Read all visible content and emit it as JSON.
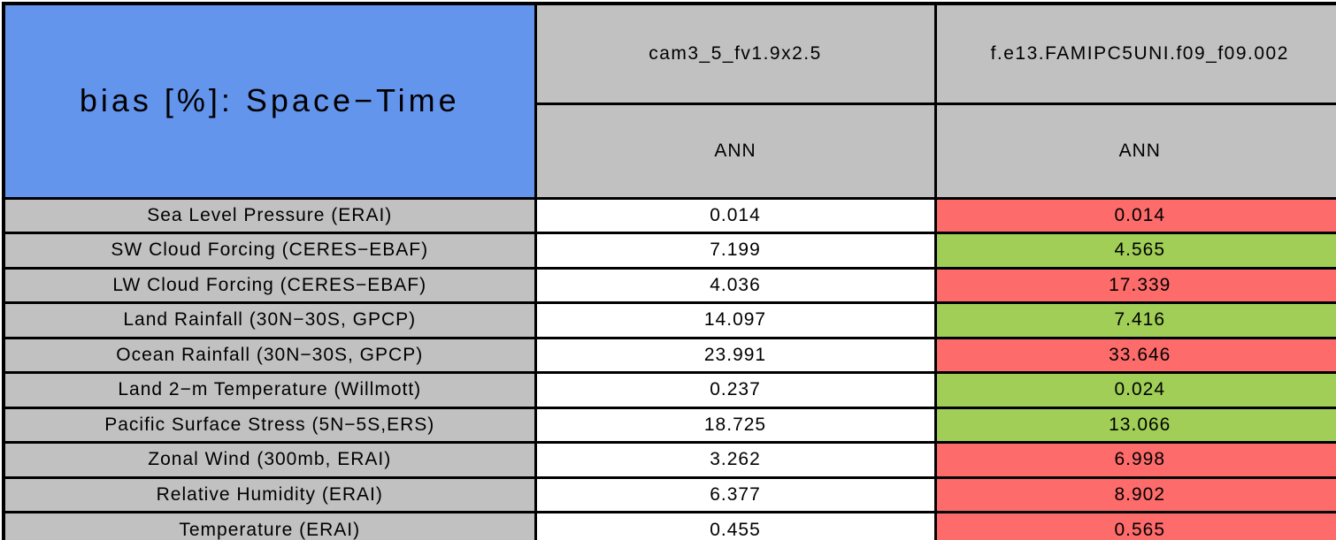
{
  "table": {
    "title": "bias [%]: Space−Time",
    "columns": [
      {
        "model": "cam3_5_fv1.9x2.5",
        "season": "ANN"
      },
      {
        "model": "f.e13.FAMIPC5UNI.f09_f09.002",
        "season": "ANN"
      }
    ],
    "rows": [
      {
        "label": "Sea Level Pressure (ERAI)",
        "case1": "0.014",
        "case2": "0.014",
        "case2_status": "worse"
      },
      {
        "label": "SW Cloud Forcing (CERES−EBAF)",
        "case1": "7.199",
        "case2": "4.565",
        "case2_status": "better"
      },
      {
        "label": "LW Cloud Forcing (CERES−EBAF)",
        "case1": "4.036",
        "case2": "17.339",
        "case2_status": "worse"
      },
      {
        "label": "Land Rainfall (30N−30S, GPCP)",
        "case1": "14.097",
        "case2": "7.416",
        "case2_status": "better"
      },
      {
        "label": "Ocean Rainfall (30N−30S, GPCP)",
        "case1": "23.991",
        "case2": "33.646",
        "case2_status": "worse"
      },
      {
        "label": "Land 2−m Temperature (Willmott)",
        "case1": "0.237",
        "case2": "0.024",
        "case2_status": "better"
      },
      {
        "label": "Pacific Surface Stress (5N−5S,ERS)",
        "case1": "18.725",
        "case2": "13.066",
        "case2_status": "better"
      },
      {
        "label": "Zonal Wind (300mb, ERAI)",
        "case1": "3.262",
        "case2": "6.998",
        "case2_status": "worse"
      },
      {
        "label": "Relative Humidity (ERAI)",
        "case1": "6.377",
        "case2": "8.902",
        "case2_status": "worse"
      },
      {
        "label": "Temperature (ERAI)",
        "case1": "0.455",
        "case2": "0.565",
        "case2_status": "worse"
      }
    ]
  },
  "colors": {
    "title_blue": "#6495ED",
    "header_gray": "#C1C1C1",
    "better_green": "#A0CE57",
    "worse_red": "#FD6B6B",
    "neutral_white": "#FFFFFF",
    "border_black": "#000000"
  },
  "chart_data": {
    "type": "table",
    "title": "bias [%]: Space−Time",
    "columns": [
      "cam3_5_fv1.9x2.5",
      "f.e13.FAMIPC5UNI.f09_f09.002"
    ],
    "column_subheaders": [
      "ANN",
      "ANN"
    ],
    "row_labels": [
      "Sea Level Pressure (ERAI)",
      "SW Cloud Forcing (CERES−EBAF)",
      "LW Cloud Forcing (CERES−EBAF)",
      "Land Rainfall (30N−30S, GPCP)",
      "Ocean Rainfall (30N−30S, GPCP)",
      "Land 2−m Temperature (Willmott)",
      "Pacific Surface Stress (5N−5S,ERS)",
      "Zonal Wind (300mb, ERAI)",
      "Relative Humidity (ERAI)",
      "Temperature (ERAI)"
    ],
    "values": [
      [
        0.014,
        0.014
      ],
      [
        7.199,
        4.565
      ],
      [
        4.036,
        17.339
      ],
      [
        14.097,
        7.416
      ],
      [
        23.991,
        33.646
      ],
      [
        0.237,
        0.024
      ],
      [
        18.725,
        13.066
      ],
      [
        3.262,
        6.998
      ],
      [
        6.377,
        8.902
      ],
      [
        0.455,
        0.565
      ]
    ],
    "cell_highlight_col2": [
      "worse",
      "better",
      "worse",
      "better",
      "worse",
      "better",
      "better",
      "worse",
      "worse",
      "worse"
    ],
    "highlight_legend": {
      "better": "green (improved vs case1)",
      "worse": "red (degraded vs case1)"
    }
  }
}
